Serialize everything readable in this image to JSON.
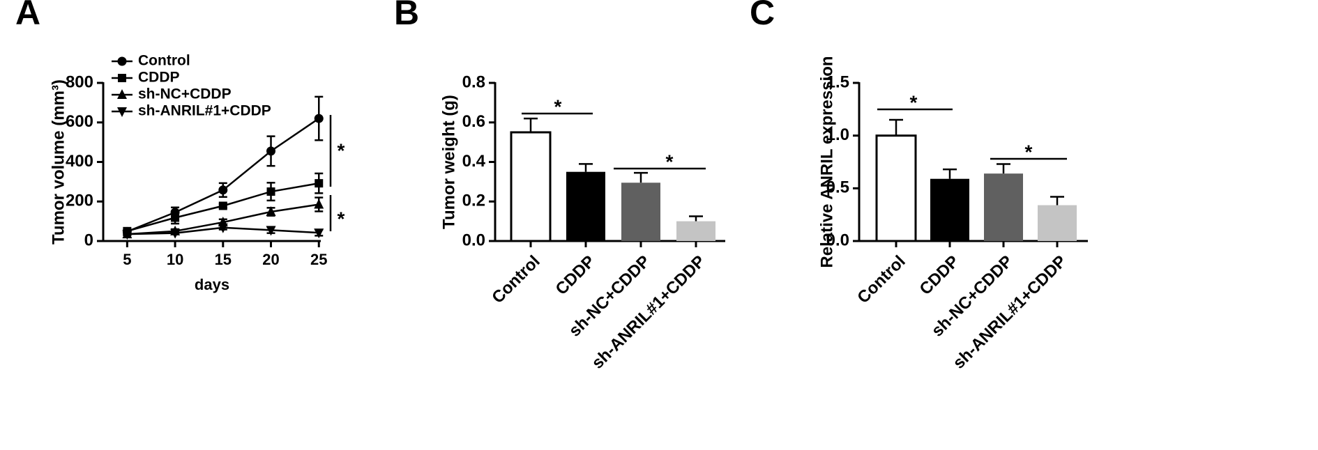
{
  "chart_data": [
    {
      "type": "line",
      "panel": "A",
      "xlabel": "days",
      "ylabel": "Tumor volume (mm³)",
      "x": [
        5,
        10,
        15,
        20,
        25
      ],
      "xlim": [
        2.5,
        25.2
      ],
      "xticks": [
        5,
        10,
        15,
        20,
        25
      ],
      "ylim": [
        0,
        800
      ],
      "yticks": [
        0,
        200,
        400,
        600,
        800
      ],
      "series": [
        {
          "name": "Control",
          "color": "#000000",
          "marker": "circle",
          "values": [
            48,
            145,
            258,
            455,
            620
          ],
          "errors": [
            5,
            25,
            35,
            75,
            110
          ]
        },
        {
          "name": "CDDP",
          "color": "#000000",
          "marker": "square",
          "values": [
            50,
            118,
            178,
            250,
            292
          ],
          "errors": [
            5,
            30,
            10,
            45,
            50
          ]
        },
        {
          "name": "sh-NC+CDDP",
          "color": "#000000",
          "marker": "triangle-up",
          "values": [
            35,
            50,
            95,
            148,
            185
          ],
          "errors": [
            5,
            10,
            15,
            20,
            35
          ]
        },
        {
          "name": "sh-ANRIL#1+CDDP",
          "color": "#000000",
          "marker": "triangle-down",
          "values": [
            35,
            40,
            68,
            55,
            42
          ],
          "errors": [
            5,
            5,
            10,
            15,
            15
          ]
        }
      ],
      "annotations": [
        "*",
        "*"
      ]
    },
    {
      "type": "bar",
      "panel": "B",
      "ylabel": "Tumor weight (g)",
      "categories": [
        "Control",
        "CDDP",
        "sh-NC+CDDP",
        "sh-ANRIL#1+CDDP"
      ],
      "values": [
        0.55,
        0.35,
        0.295,
        0.1
      ],
      "errors": [
        0.07,
        0.04,
        0.05,
        0.025
      ],
      "colors": [
        "#ffffff",
        "#000000",
        "#606060",
        "#c4c4c4"
      ],
      "ylim": [
        0,
        0.8
      ],
      "yticks": [
        {
          "value": 0,
          "label": "0.0"
        },
        0.2,
        0.4,
        0.6,
        0.8
      ],
      "annotations": [
        "*",
        "*"
      ]
    },
    {
      "type": "bar",
      "panel": "C",
      "ylabel": "Relative ANRIL expression",
      "categories": [
        "Control",
        "CDDP",
        "sh-NC+CDDP",
        "sh-ANRIL#1+CDDP"
      ],
      "values": [
        1.0,
        0.59,
        0.64,
        0.34
      ],
      "errors": [
        0.15,
        0.09,
        0.09,
        0.08
      ],
      "colors": [
        "#ffffff",
        "#000000",
        "#606060",
        "#c4c4c4"
      ],
      "ylim": [
        0,
        1.5
      ],
      "yticks": [
        {
          "value": 0,
          "label": "0.0"
        },
        0.5,
        {
          "value": 1,
          "label": "1.0"
        },
        1.5
      ],
      "annotations": [
        "*",
        "*"
      ]
    }
  ]
}
